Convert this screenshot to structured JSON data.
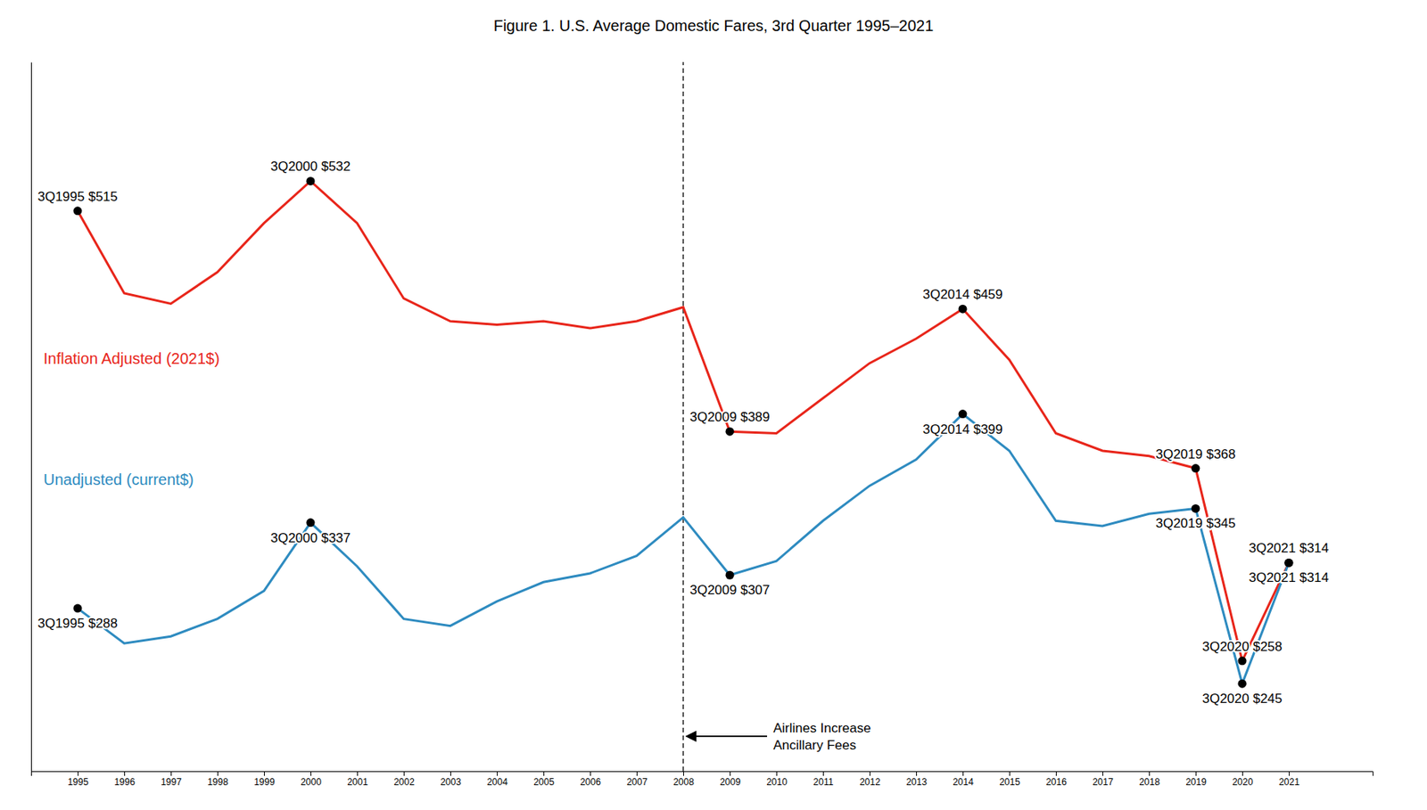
{
  "chart_data": {
    "type": "line",
    "title": "Figure 1. U.S. Average Domestic Fares, 3rd Quarter 1995–2021",
    "x": [
      1995,
      1996,
      1997,
      1998,
      1999,
      2000,
      2001,
      2002,
      2003,
      2004,
      2005,
      2006,
      2007,
      2008,
      2009,
      2010,
      2011,
      2012,
      2013,
      2014,
      2015,
      2016,
      2017,
      2018,
      2019,
      2020,
      2021
    ],
    "xlim": [
      1994.0,
      2022.8
    ],
    "xticks": [
      1995,
      1996,
      1997,
      1998,
      1999,
      2000,
      2001,
      2002,
      2003,
      2004,
      2005,
      2006,
      2007,
      2008,
      2009,
      2010,
      2011,
      2012,
      2013,
      2014,
      2015,
      2016,
      2017,
      2018,
      2019,
      2020,
      2021
    ],
    "ylim": [
      195,
      600
    ],
    "tick_labels": "x",
    "grid": false,
    "series": [
      {
        "name": "Inflation Adjusted (2021$)",
        "color": "#e8251a",
        "values": [
          515,
          468,
          462,
          480,
          508,
          532,
          508,
          465,
          452,
          450,
          452,
          448,
          452,
          460,
          389,
          388,
          408,
          428,
          442,
          459,
          430,
          388,
          378,
          375,
          368,
          258,
          314
        ],
        "value_labels": [
          "3Q1995 $515",
          null,
          null,
          null,
          null,
          "3Q2000 $532",
          null,
          null,
          null,
          null,
          null,
          null,
          null,
          null,
          "3Q2009 $389",
          null,
          null,
          null,
          null,
          "3Q2014 $459",
          null,
          null,
          null,
          null,
          "3Q2019 $368",
          "3Q2020 $258",
          "3Q2021 $314"
        ]
      },
      {
        "name": "Unadjusted (current$)",
        "color": "#2e8bc0",
        "values": [
          288,
          268,
          272,
          282,
          298,
          337,
          312,
          282,
          278,
          292,
          303,
          308,
          318,
          340,
          307,
          315,
          338,
          358,
          373,
          399,
          378,
          338,
          335,
          342,
          345,
          245,
          314
        ],
        "value_labels": [
          "3Q1995 $288",
          null,
          null,
          null,
          null,
          "3Q2000 $337",
          null,
          null,
          null,
          null,
          null,
          null,
          null,
          null,
          "3Q2009 $307",
          null,
          null,
          null,
          null,
          "3Q2014 $399",
          null,
          null,
          null,
          null,
          "3Q2019 $345",
          "3Q2020 $245",
          "3Q2021 $314"
        ]
      }
    ],
    "annotations": [
      {
        "x": 2008,
        "text": [
          "Airlines Increase",
          "Ancillary Fees"
        ]
      }
    ]
  }
}
